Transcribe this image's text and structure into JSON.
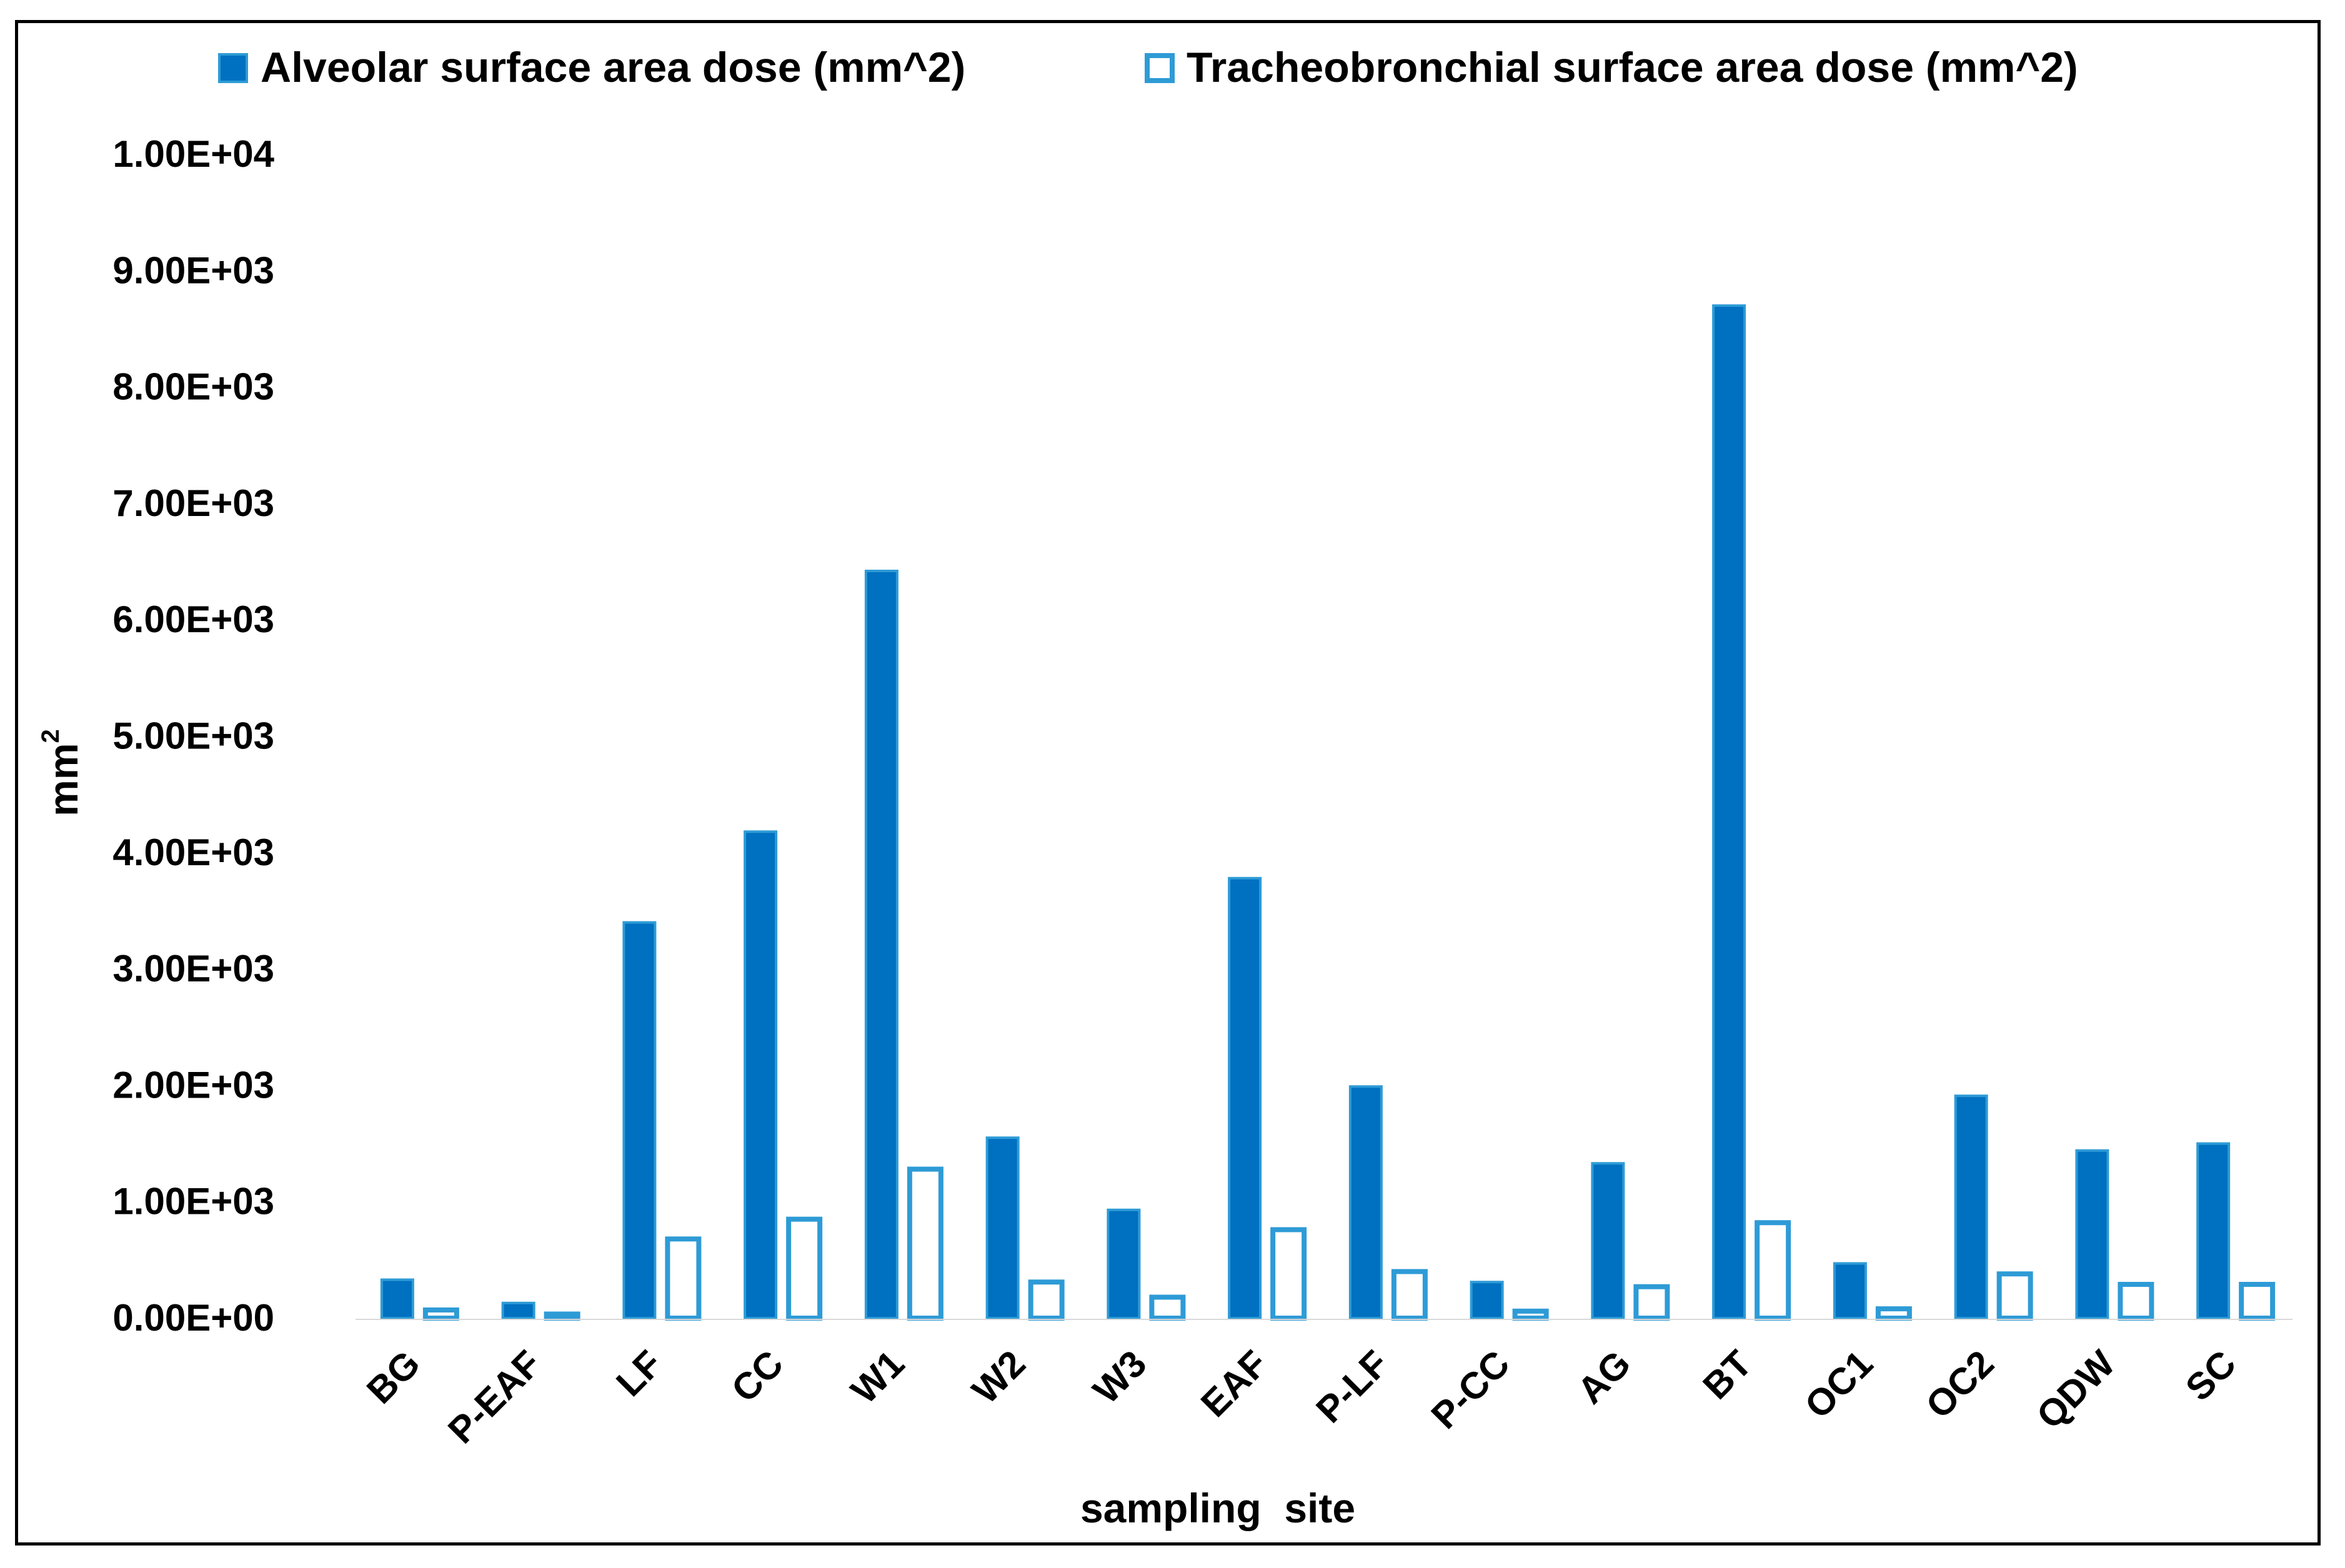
{
  "chart_data": {
    "type": "bar",
    "title": "",
    "xlabel": "sampling  site",
    "ylabel": "mm",
    "ylabel_superscript": "2",
    "ylim": [
      0,
      10000
    ],
    "yticks": [
      {
        "value": 0,
        "label": "0.00E+00"
      },
      {
        "value": 1000,
        "label": "1.00E+03"
      },
      {
        "value": 2000,
        "label": "2.00E+03"
      },
      {
        "value": 3000,
        "label": "3.00E+03"
      },
      {
        "value": 4000,
        "label": "4.00E+03"
      },
      {
        "value": 5000,
        "label": "5.00E+03"
      },
      {
        "value": 6000,
        "label": "6.00E+03"
      },
      {
        "value": 7000,
        "label": "7.00E+03"
      },
      {
        "value": 8000,
        "label": "8.00E+03"
      },
      {
        "value": 9000,
        "label": "9.00E+03"
      },
      {
        "value": 10000,
        "label": "1.00E+04"
      }
    ],
    "grid": false,
    "legend_position": "top",
    "categories": [
      "BG",
      "P-EAF",
      "LF",
      "CC",
      "W1",
      "W2",
      "W3",
      "EAF",
      "P-LF",
      "P-CC",
      "AG",
      "BT",
      "OC1",
      "OC2",
      "QDW",
      "SC"
    ],
    "series": [
      {
        "name": "Alveolar surface area dose (mm^2)",
        "style": "filled",
        "color": "#0070C0",
        "values": [
          330,
          130,
          3400,
          4180,
          6420,
          1550,
          930,
          3780,
          1990,
          310,
          1330,
          8700,
          470,
          1910,
          1440,
          1500
        ]
      },
      {
        "name": "Tracheobronchial surface area dose (mm^2)",
        "style": "outline",
        "color": "#2E9BD6",
        "values": [
          70,
          35,
          680,
          850,
          1280,
          310,
          180,
          760,
          400,
          60,
          270,
          820,
          80,
          380,
          290,
          290
        ]
      }
    ]
  }
}
